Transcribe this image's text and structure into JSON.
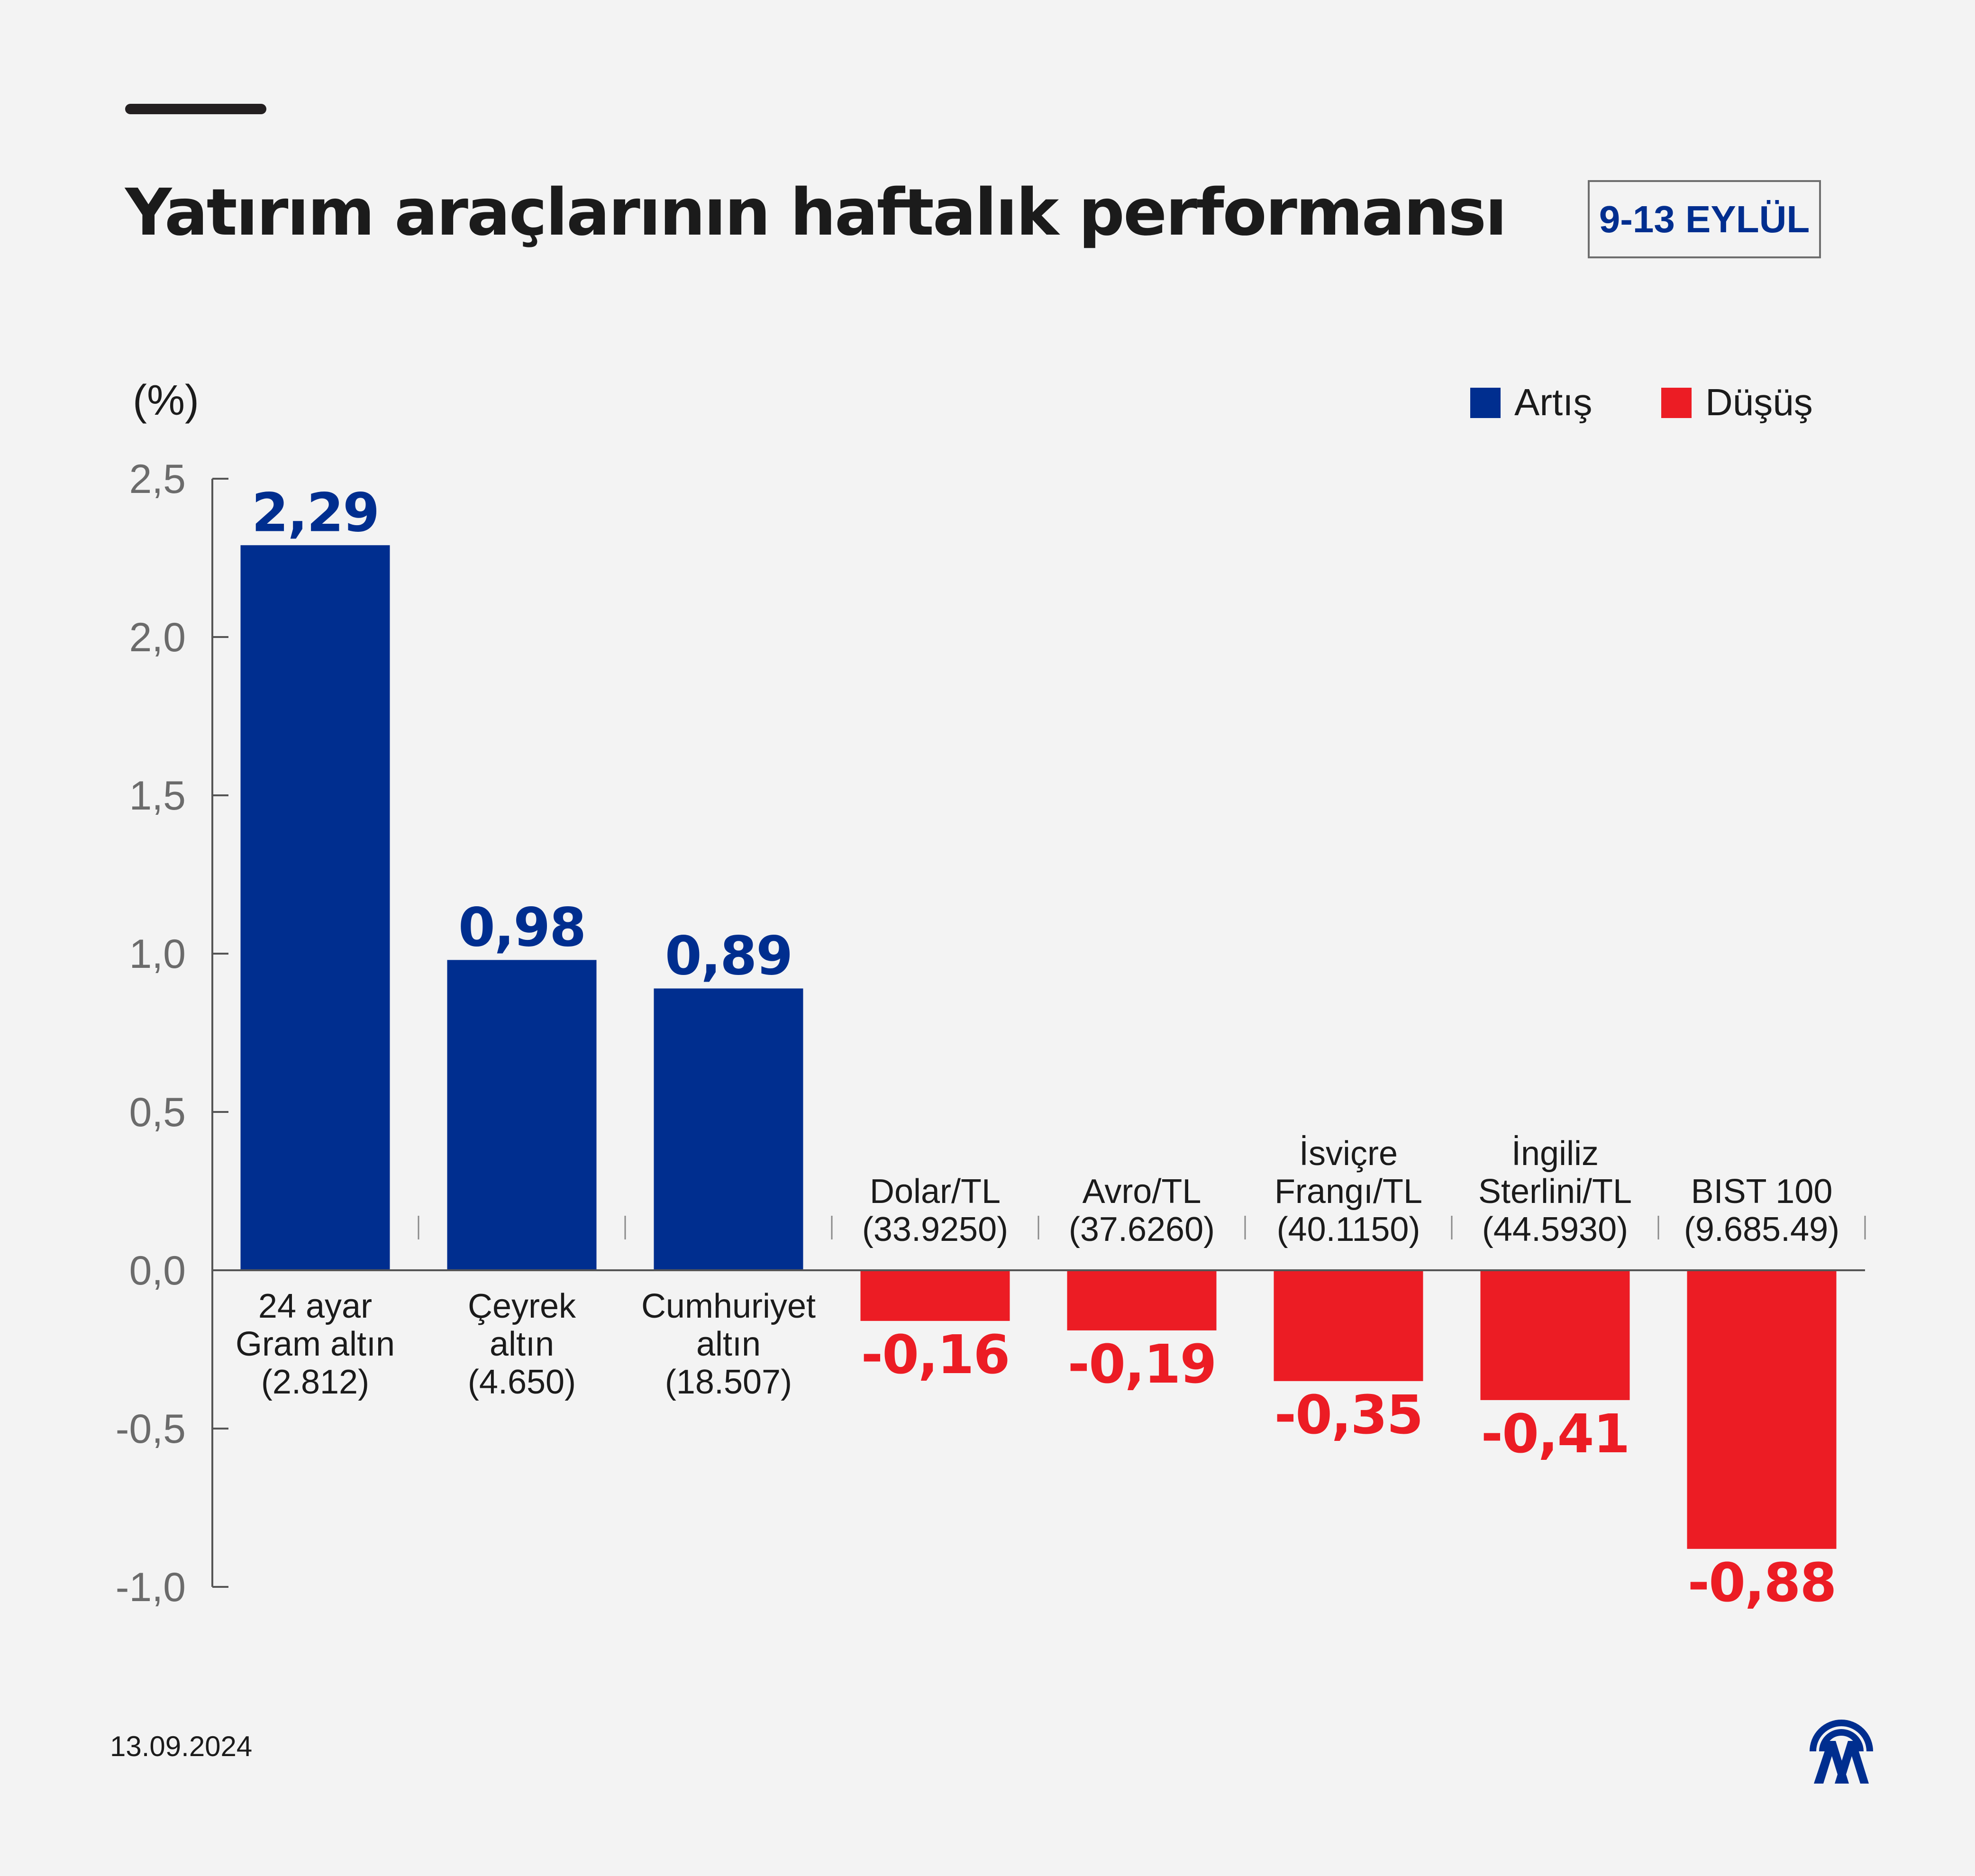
{
  "header": {
    "title": "Yatırım araçlarının haftalık performansı",
    "date_range": "9-13 EYLÜL"
  },
  "footer": {
    "date": "13.09.2024",
    "logo_icon": "aa-logo-icon"
  },
  "colors": {
    "increase": "#002e8f",
    "decrease": "#ec1c24",
    "axis": "#555555",
    "text": "#1b1b1b",
    "tick_text": "#6b6b6b"
  },
  "chart_data": {
    "type": "bar",
    "ylabel": "(%)",
    "ylim": [
      -1.0,
      2.5
    ],
    "yticks": [
      2.5,
      2.0,
      1.5,
      1.0,
      0.5,
      0.0,
      -0.5,
      -1.0
    ],
    "ytick_labels": [
      "2,5",
      "2,0",
      "1,5",
      "1,0",
      "0,5",
      "0,0",
      "-0,5",
      "-1,0"
    ],
    "legend": {
      "position": "top-right",
      "items": [
        {
          "label": "Artış",
          "color": "#002e8f"
        },
        {
          "label": "Düşüş",
          "color": "#ec1c24"
        }
      ]
    },
    "grid": false,
    "categories": [
      {
        "lines": [
          "24 ayar",
          "Gram altın",
          "(2.812)"
        ],
        "value": 2.29,
        "label": "2,29"
      },
      {
        "lines": [
          "Çeyrek",
          "altın",
          "(4.650)"
        ],
        "value": 0.98,
        "label": "0,98"
      },
      {
        "lines": [
          "Cumhuriyet",
          "altın",
          "(18.507)"
        ],
        "value": 0.89,
        "label": "0,89"
      },
      {
        "lines": [
          "Dolar/TL",
          "(33.9250)"
        ],
        "value": -0.16,
        "label": "-0,16"
      },
      {
        "lines": [
          "Avro/TL",
          "(37.6260)"
        ],
        "value": -0.19,
        "label": "-0,19"
      },
      {
        "lines": [
          "İsviçre",
          "Frangı/TL",
          "(40.1150)"
        ],
        "value": -0.35,
        "label": "-0,35"
      },
      {
        "lines": [
          "İngiliz",
          "Sterlini/TL",
          "(44.5930)"
        ],
        "value": -0.41,
        "label": "-0,41"
      },
      {
        "lines": [
          "BIST 100",
          "(9.685.49)"
        ],
        "value": -0.88,
        "label": "-0,88"
      }
    ]
  }
}
